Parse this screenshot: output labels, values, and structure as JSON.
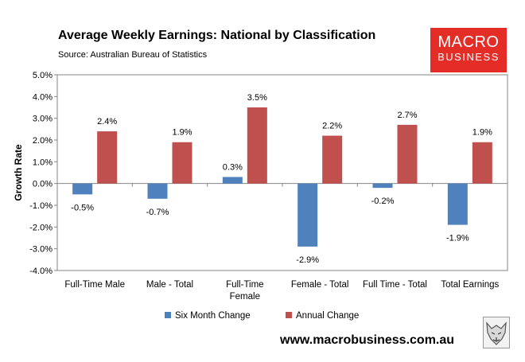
{
  "header": {
    "title": "Average Weekly Earnings: National by Classification",
    "source": "Source: Australian Bureau of Statistics"
  },
  "logo": {
    "line1": "MACRO",
    "line2": "BUSINESS",
    "color": "#e52d27"
  },
  "footer": {
    "url": "www.macrobusiness.com.au"
  },
  "chart_data": {
    "type": "bar",
    "title": "Average Weekly Earnings: National by Classification",
    "xlabel": "",
    "ylabel": "Growth Rate",
    "ylim": [
      -4.0,
      5.0
    ],
    "ytick_step": 1.0,
    "yticks": [
      "5.0%",
      "4.0%",
      "3.0%",
      "2.0%",
      "1.0%",
      "0.0%",
      "-1.0%",
      "-2.0%",
      "-3.0%",
      "-4.0%"
    ],
    "grid": false,
    "legend_position": "bottom",
    "categories": [
      [
        "Full-Time Male"
      ],
      [
        "Male - Total"
      ],
      [
        "Full-Time",
        "Female"
      ],
      [
        "Female - Total"
      ],
      [
        "Full Time - Total"
      ],
      [
        "Total Earnings"
      ]
    ],
    "series": [
      {
        "name": "Six Month Change",
        "color": "#4f81bd",
        "values": [
          -0.5,
          -0.7,
          0.3,
          -2.9,
          -0.2,
          -1.9
        ],
        "labels": [
          "-0.5%",
          "-0.7%",
          "0.3%",
          "-2.9%",
          "-0.2%",
          "-1.9%"
        ]
      },
      {
        "name": "Annual Change",
        "color": "#c0504d",
        "values": [
          2.4,
          1.9,
          3.5,
          2.2,
          2.7,
          1.9
        ],
        "labels": [
          "2.4%",
          "1.9%",
          "3.5%",
          "2.2%",
          "2.7%",
          "1.9%"
        ]
      }
    ]
  }
}
